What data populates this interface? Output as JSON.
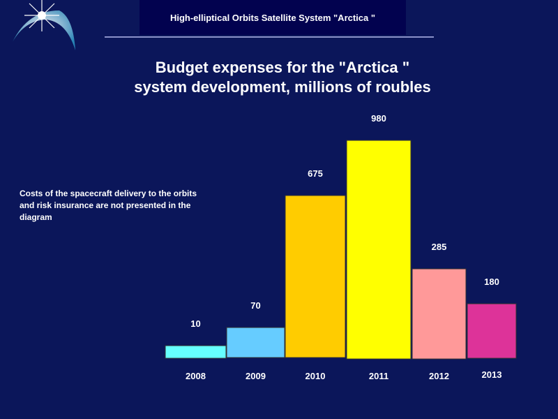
{
  "header": {
    "title": "High-elliptical Orbits Satellite System \"Arctica \""
  },
  "note": "Costs of the spacecraft delivery to the orbits and risk insurance  are not presented in the diagram",
  "chart_data": {
    "type": "bar",
    "title": "Budget expenses for the \"Arctica \" system development, millions of roubles",
    "title_lines": [
      "Budget expenses for the \"Arctica \"",
      "system development, millions of roubles"
    ],
    "categories": [
      "2008",
      "2009",
      "2010",
      "2011",
      "2012",
      "2013"
    ],
    "values": [
      10,
      70,
      675,
      980,
      285,
      180
    ],
    "value_labels": [
      "10",
      "70",
      "675",
      "980",
      "285",
      "180"
    ],
    "colors": [
      "#66ffff",
      "#66ccff",
      "#ffcc00",
      "#ffff00",
      "#ff9999",
      "#dd3399"
    ],
    "xlabel": "",
    "ylabel": "",
    "grid": false,
    "legend": "none"
  }
}
